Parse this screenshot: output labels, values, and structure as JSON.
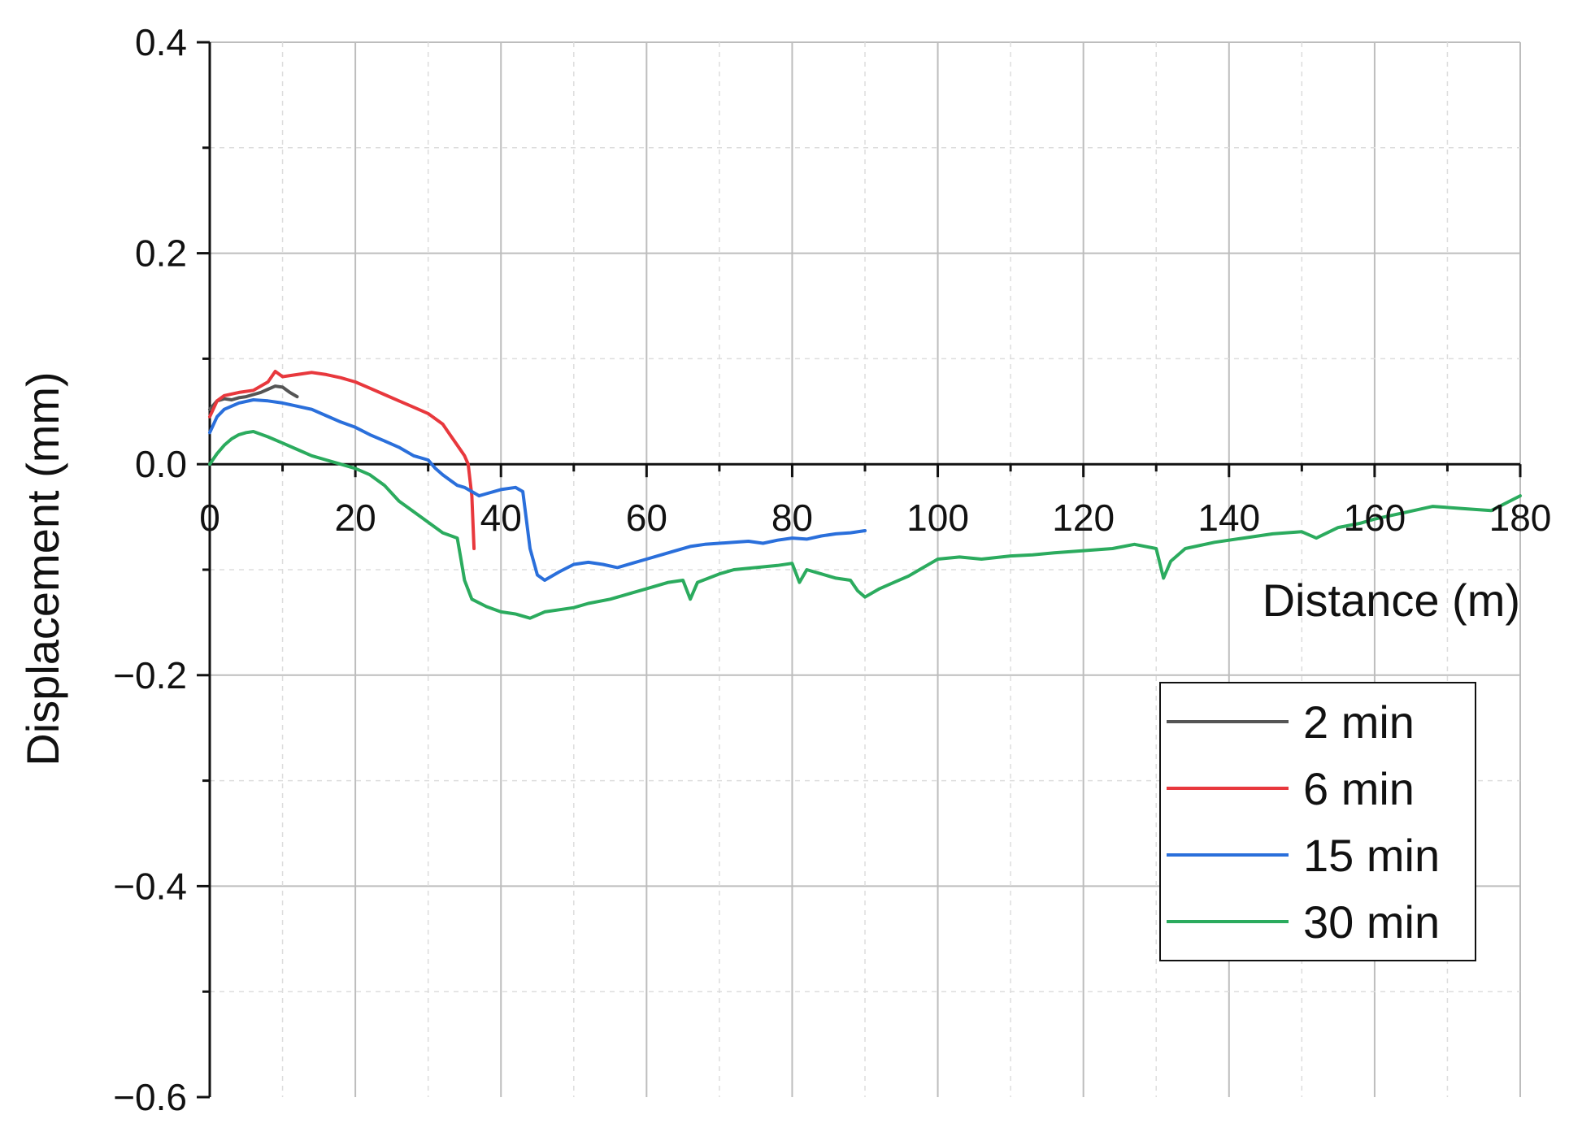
{
  "chart_data": {
    "type": "line",
    "title": "",
    "xlabel": "Distance (m)",
    "ylabel": "Displacement (mm)",
    "xlim": [
      0,
      180
    ],
    "ylim": [
      -0.6,
      0.4
    ],
    "x_ticks": [
      0,
      20,
      40,
      60,
      80,
      100,
      120,
      140,
      160,
      180
    ],
    "x_tick_labels": [
      "0",
      "20",
      "40",
      "60",
      "80",
      "100",
      "120",
      "140",
      "160",
      "180"
    ],
    "y_ticks": [
      0.4,
      0.2,
      0.0,
      -0.2,
      -0.4,
      -0.6
    ],
    "y_tick_labels": [
      "0.4",
      "0.2",
      "0.0",
      "−0.2",
      "−0.4",
      "−0.6"
    ],
    "grid": true,
    "legend_position": "bottom-right",
    "series": [
      {
        "name": "2 min",
        "color": "#555555",
        "x": [
          0,
          1,
          2,
          3,
          4,
          5,
          6,
          7,
          8,
          9,
          10,
          11,
          12
        ],
        "y": [
          0.052,
          0.06,
          0.062,
          0.061,
          0.063,
          0.064,
          0.066,
          0.068,
          0.071,
          0.074,
          0.073,
          0.068,
          0.064
        ]
      },
      {
        "name": "6 min",
        "color": "#e8383d",
        "x": [
          0,
          1,
          2,
          4,
          6,
          8,
          9,
          10,
          12,
          14,
          16,
          18,
          20,
          22,
          24,
          26,
          28,
          30,
          32,
          33,
          34,
          35,
          35.5,
          36,
          36.3
        ],
        "y": [
          0.045,
          0.06,
          0.065,
          0.068,
          0.07,
          0.078,
          0.088,
          0.083,
          0.085,
          0.087,
          0.085,
          0.082,
          0.078,
          0.072,
          0.066,
          0.06,
          0.054,
          0.048,
          0.038,
          0.028,
          0.018,
          0.008,
          0.0,
          -0.03,
          -0.08
        ]
      },
      {
        "name": "15 min",
        "color": "#2a6fdb",
        "x": [
          0,
          1,
          2,
          4,
          6,
          8,
          10,
          12,
          14,
          16,
          18,
          20,
          22,
          24,
          26,
          28,
          30,
          31,
          32,
          33,
          34,
          35,
          36,
          37,
          38,
          40,
          42,
          43,
          44,
          45,
          46,
          48,
          50,
          52,
          54,
          56,
          58,
          60,
          62,
          64,
          66,
          68,
          70,
          72,
          74,
          76,
          78,
          80,
          82,
          84,
          86,
          88,
          90
        ],
        "y": [
          0.03,
          0.045,
          0.052,
          0.058,
          0.061,
          0.06,
          0.058,
          0.055,
          0.052,
          0.046,
          0.04,
          0.035,
          0.028,
          0.022,
          0.016,
          0.008,
          0.004,
          -0.004,
          -0.01,
          -0.015,
          -0.02,
          -0.022,
          -0.026,
          -0.03,
          -0.028,
          -0.024,
          -0.022,
          -0.026,
          -0.08,
          -0.105,
          -0.11,
          -0.102,
          -0.095,
          -0.093,
          -0.095,
          -0.098,
          -0.094,
          -0.09,
          -0.086,
          -0.082,
          -0.078,
          -0.076,
          -0.075,
          -0.074,
          -0.073,
          -0.075,
          -0.072,
          -0.07,
          -0.071,
          -0.068,
          -0.066,
          -0.065,
          -0.063
        ]
      },
      {
        "name": "30 min",
        "color": "#2bab5e",
        "x": [
          0,
          1,
          2,
          3,
          4,
          5,
          6,
          8,
          10,
          12,
          14,
          16,
          18,
          20,
          22,
          24,
          26,
          28,
          30,
          32,
          34,
          34.5,
          35,
          36,
          38,
          40,
          42,
          44,
          46,
          48,
          50,
          52,
          55,
          58,
          60,
          63,
          65,
          66,
          67,
          70,
          72,
          75,
          78,
          80,
          81,
          82,
          84,
          86,
          88,
          89,
          90,
          92,
          94,
          96,
          98,
          100,
          103,
          106,
          110,
          113,
          116,
          120,
          124,
          127,
          130,
          131,
          132,
          134,
          138,
          142,
          146,
          150,
          152,
          155,
          158,
          160,
          164,
          168,
          172,
          176,
          180
        ],
        "y": [
          0.0,
          0.01,
          0.018,
          0.024,
          0.028,
          0.03,
          0.031,
          0.026,
          0.02,
          0.014,
          0.008,
          0.004,
          0.0,
          -0.004,
          -0.01,
          -0.02,
          -0.035,
          -0.045,
          -0.055,
          -0.065,
          -0.07,
          -0.09,
          -0.11,
          -0.128,
          -0.135,
          -0.14,
          -0.142,
          -0.146,
          -0.14,
          -0.138,
          -0.136,
          -0.132,
          -0.128,
          -0.122,
          -0.118,
          -0.112,
          -0.11,
          -0.128,
          -0.112,
          -0.104,
          -0.1,
          -0.098,
          -0.096,
          -0.094,
          -0.112,
          -0.1,
          -0.104,
          -0.108,
          -0.11,
          -0.12,
          -0.126,
          -0.118,
          -0.112,
          -0.106,
          -0.098,
          -0.09,
          -0.088,
          -0.09,
          -0.087,
          -0.086,
          -0.084,
          -0.082,
          -0.08,
          -0.076,
          -0.08,
          -0.108,
          -0.092,
          -0.08,
          -0.074,
          -0.07,
          -0.066,
          -0.064,
          -0.07,
          -0.06,
          -0.056,
          -0.052,
          -0.046,
          -0.04,
          -0.042,
          -0.044,
          -0.03
        ]
      }
    ]
  }
}
